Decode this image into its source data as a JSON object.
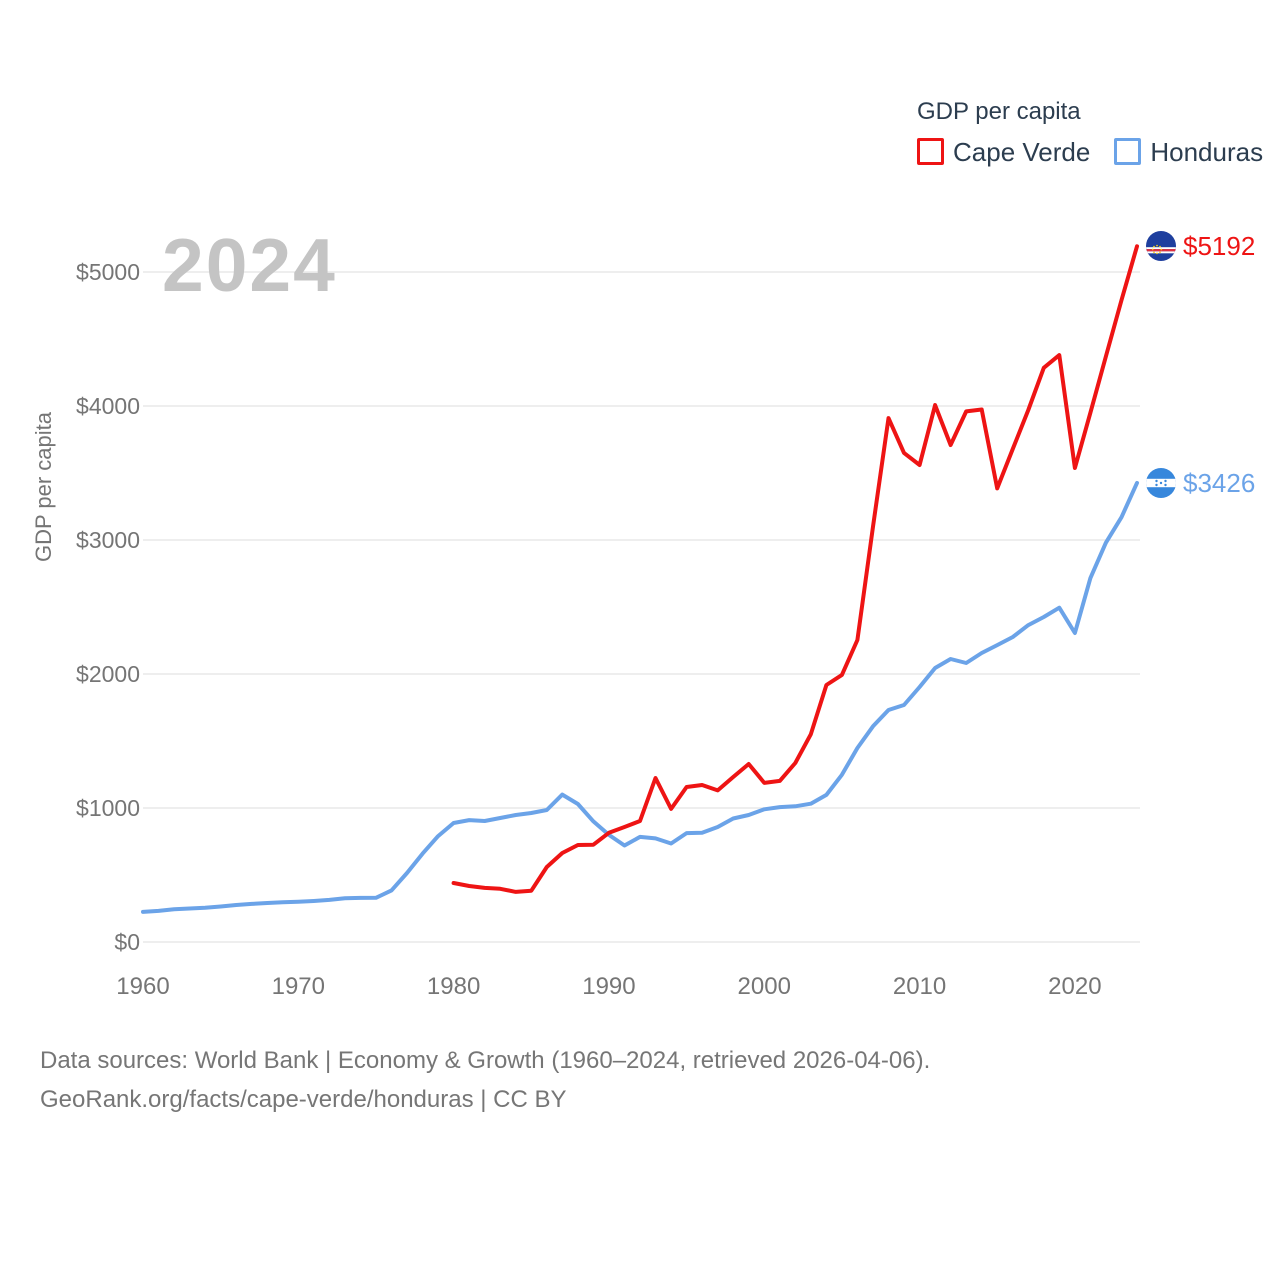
{
  "watermark": "2024",
  "legend": {
    "title": "GDP per capita",
    "series": [
      {
        "label": "Cape Verde",
        "color": "#ee1414"
      },
      {
        "label": "Honduras",
        "color": "#6ba3e8"
      }
    ]
  },
  "y_axis": {
    "label": "GDP per capita"
  },
  "source": {
    "line1": "Data sources: World Bank | Economy & Growth (1960–2024, retrieved 2026-04-06).",
    "line2": "GeoRank.org/facts/cape-verde/honduras | CC BY"
  },
  "colors": {
    "cape_verde": "#ee1414",
    "honduras": "#6ba3e8",
    "axis_text": "#757575",
    "legend_text": "#2c3d4f",
    "gridline": "#e9e9e9",
    "watermark": "#c4c4c4"
  },
  "chart_data": {
    "type": "line",
    "title": "GDP per capita",
    "xlabel": "",
    "ylabel": "GDP per capita",
    "xlim": [
      1960,
      2024
    ],
    "ylim": [
      0,
      5000
    ],
    "grid": "horizontal",
    "legend_position": "top-right",
    "x_ticks": [
      1960,
      1970,
      1980,
      1990,
      2000,
      2010,
      2020
    ],
    "x_tick_labels": [
      "1960",
      "1970",
      "1980",
      "1990",
      "2000",
      "2010",
      "2020"
    ],
    "y_ticks": [
      0,
      1000,
      2000,
      3000,
      4000,
      5000
    ],
    "y_tick_labels": [
      "$0",
      "$1000",
      "$2000",
      "$3000",
      "$4000",
      "$5000"
    ],
    "series": [
      {
        "name": "Cape Verde",
        "color": "#ee1414",
        "end_label": "$5192",
        "x_start": 1980,
        "x": [
          1980,
          1981,
          1982,
          1983,
          1984,
          1985,
          1986,
          1987,
          1988,
          1989,
          1990,
          1991,
          1992,
          1993,
          1994,
          1995,
          1996,
          1997,
          1998,
          1999,
          2000,
          2001,
          2002,
          2003,
          2004,
          2005,
          2006,
          2007,
          2008,
          2009,
          2010,
          2011,
          2012,
          2013,
          2014,
          2015,
          2016,
          2017,
          2018,
          2019,
          2020,
          2021,
          2022,
          2023,
          2024
        ],
        "values": [
          440,
          418,
          404,
          397,
          374,
          383,
          560,
          664,
          724,
          726,
          815,
          858,
          903,
          1224,
          993,
          1157,
          1172,
          1131,
          1231,
          1328,
          1187,
          1202,
          1336,
          1550,
          1918,
          1993,
          2254,
          3100,
          3910,
          3650,
          3560,
          4007,
          3709,
          3960,
          3974,
          3385,
          3680,
          3970,
          4285,
          4380,
          3537,
          3950,
          4370,
          4790,
          5192
        ]
      },
      {
        "name": "Honduras",
        "color": "#6ba3e8",
        "end_label": "$3426",
        "x_start": 1960,
        "x": [
          1960,
          1961,
          1962,
          1963,
          1964,
          1965,
          1966,
          1967,
          1968,
          1969,
          1970,
          1971,
          1972,
          1973,
          1974,
          1975,
          1976,
          1977,
          1978,
          1979,
          1980,
          1981,
          1982,
          1983,
          1984,
          1985,
          1986,
          1987,
          1988,
          1989,
          1990,
          1991,
          1992,
          1993,
          1994,
          1995,
          1996,
          1997,
          1998,
          1999,
          2000,
          2001,
          2002,
          2003,
          2004,
          2005,
          2006,
          2007,
          2008,
          2009,
          2010,
          2011,
          2012,
          2013,
          2014,
          2015,
          2016,
          2017,
          2018,
          2019,
          2020,
          2021,
          2022,
          2023,
          2024
        ],
        "values": [
          225,
          232,
          245,
          250,
          256,
          265,
          276,
          284,
          291,
          296,
          300,
          306,
          314,
          326,
          329,
          330,
          385,
          515,
          660,
          790,
          888,
          910,
          903,
          925,
          948,
          963,
          985,
          1100,
          1030,
          900,
          799,
          720,
          784,
          773,
          735,
          813,
          815,
          858,
          922,
          948,
          990,
          1007,
          1013,
          1032,
          1098,
          1248,
          1448,
          1610,
          1731,
          1769,
          1903,
          2045,
          2112,
          2082,
          2157,
          2216,
          2276,
          2365,
          2425,
          2495,
          2306,
          2716,
          2980,
          3170,
          3426
        ]
      }
    ]
  }
}
